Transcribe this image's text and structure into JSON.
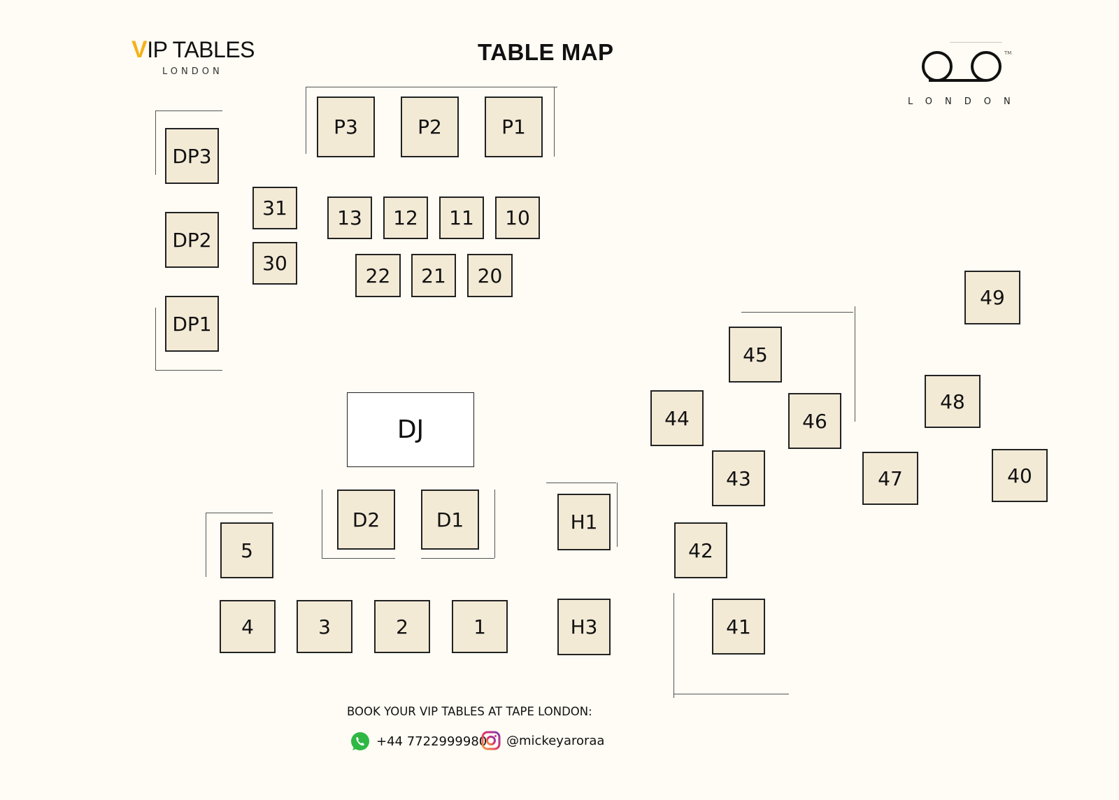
{
  "header": {
    "title": "TABLE MAP",
    "logo_left": {
      "brand": "VIP TABLES",
      "city": "LONDON"
    },
    "logo_right": {
      "brand": "TAPE",
      "city": "LONDON",
      "tm": "TM"
    }
  },
  "tables": [
    "P3",
    "P2",
    "P1",
    "DP3",
    "DP2",
    "DP1",
    "31",
    "30",
    "13",
    "12",
    "11",
    "10",
    "22",
    "21",
    "20",
    "DJ",
    "D2",
    "D1",
    "H1",
    "H3",
    "5",
    "4",
    "3",
    "2",
    "1",
    "45",
    "44",
    "46",
    "43",
    "42",
    "41",
    "49",
    "48",
    "47",
    "40"
  ],
  "footer": {
    "book_text": "BOOK YOUR VIP TABLES AT TAPE LONDON:",
    "phone": "+44 7722999980",
    "instagram": "@mickeyaroraa",
    "icons": [
      "whatsapp-icon",
      "instagram-icon"
    ]
  },
  "colors": {
    "table_fill": "#f3ead6",
    "background": "#fefcf4",
    "logo_accent": "#f5b21c"
  }
}
